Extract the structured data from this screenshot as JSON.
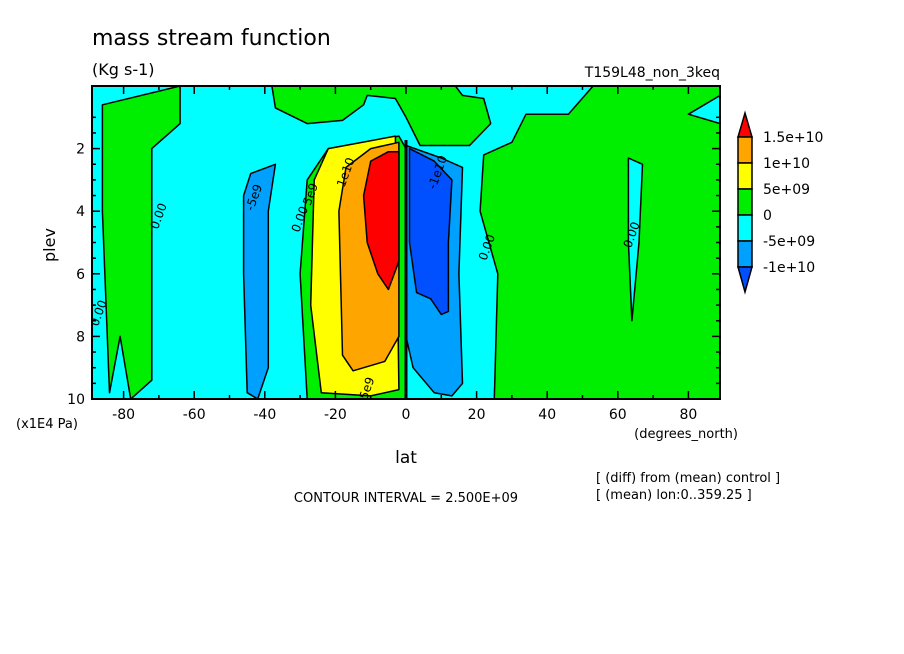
{
  "chart_data": {
    "type": "heatmap",
    "title": "mass stream function",
    "units": "(Kg s-1)",
    "experiment": "T159L48_non_3keq",
    "xlabel": "lat",
    "xunits": "(degrees_north)",
    "ylabel": "plev",
    "yunits": "(x1E4 Pa)",
    "xlim": [
      -89,
      89
    ],
    "ylim": [
      10,
      0
    ],
    "xticks": [
      -80,
      -60,
      -40,
      -20,
      0,
      20,
      40,
      60,
      80
    ],
    "xtick_labels": [
      "-80",
      "-60",
      "-40",
      "-20",
      "0",
      "20",
      "40",
      "60",
      "80"
    ],
    "yticks": [
      2,
      4,
      6,
      8,
      10
    ],
    "ytick_labels": [
      "2",
      "4",
      "6",
      "8",
      "10"
    ],
    "contour_interval_text": "CONTOUR INTERVAL = 2.500E+09",
    "notes": [
      "[ (diff) from (mean) control ]",
      "[ (mean) lon:0..359.25 ]"
    ],
    "legend": {
      "levels": [
        "1.5e+10",
        "1e+10",
        "5e+09",
        "0",
        "-5e+09",
        "-1e+10"
      ],
      "colors": [
        "#ff0000",
        "#ffa500",
        "#ffff00",
        "#00ee00",
        "#00ffff",
        "#00a0ff",
        "#0050ff"
      ],
      "placement": "right"
    },
    "regions": [
      {
        "level": "0..5e9",
        "color": "#00ee00",
        "points": [
          [
            -86,
            0.6
          ],
          [
            -64,
            0
          ],
          [
            -64,
            1.2
          ],
          [
            -72,
            2
          ],
          [
            -72,
            9.4
          ],
          [
            -78,
            10
          ],
          [
            -81,
            8
          ],
          [
            -84,
            9.8
          ],
          [
            -86,
            4
          ]
        ]
      },
      {
        "level": "0..5e9",
        "color": "#00ee00",
        "points": [
          [
            -38,
            0
          ],
          [
            -37,
            0.7
          ],
          [
            -28,
            1.2
          ],
          [
            -18,
            1.1
          ],
          [
            -12,
            0.6
          ],
          [
            -11,
            0.3
          ],
          [
            -3,
            0.4
          ],
          [
            0,
            1.0
          ],
          [
            4,
            1.9
          ],
          [
            18,
            1.9
          ],
          [
            24,
            1.2
          ],
          [
            22,
            0.4
          ],
          [
            16,
            0.3
          ],
          [
            14,
            0
          ]
        ]
      },
      {
        "level": "0..5e9",
        "color": "#00ee00",
        "points": [
          [
            -28,
            10
          ],
          [
            -30,
            6
          ],
          [
            -28,
            3
          ],
          [
            -22,
            2
          ],
          [
            -2,
            1.6
          ],
          [
            0,
            2
          ],
          [
            0,
            10
          ]
        ]
      },
      {
        "level": "0..5e9",
        "color": "#00ee00",
        "points": [
          [
            25,
            10
          ],
          [
            26,
            6
          ],
          [
            21,
            4
          ],
          [
            22,
            2.2
          ],
          [
            30,
            1.8
          ],
          [
            34,
            0.9
          ],
          [
            46,
            0.9
          ],
          [
            53,
            0
          ],
          [
            89,
            0
          ],
          [
            89,
            0.3
          ],
          [
            80,
            0.9
          ],
          [
            89,
            1.2
          ],
          [
            89,
            10
          ]
        ]
      },
      {
        "level": "-5e9..0",
        "color": "#00ffff",
        "points": [
          [
            63,
            2.3
          ],
          [
            67,
            2.5
          ],
          [
            66,
            5
          ],
          [
            64,
            7.5
          ],
          [
            63,
            5
          ]
        ]
      },
      {
        "level": "5e9..1e10",
        "color": "#ffff00",
        "points": [
          [
            -24,
            9.8
          ],
          [
            -27,
            7
          ],
          [
            -26,
            3
          ],
          [
            -22,
            2
          ],
          [
            -3,
            1.6
          ],
          [
            -2,
            9.7
          ],
          [
            -10,
            9.9
          ]
        ]
      },
      {
        "level": "1e10..1.5e10",
        "color": "#ffa500",
        "points": [
          [
            -18,
            8.6
          ],
          [
            -19,
            4
          ],
          [
            -17,
            2.6
          ],
          [
            -10,
            2.0
          ],
          [
            -2,
            1.8
          ],
          [
            -2,
            8.0
          ],
          [
            -6,
            8.8
          ],
          [
            -15,
            9.1
          ]
        ]
      },
      {
        "level": ">1.5e10",
        "color": "#ff0000",
        "points": [
          [
            -12,
            3.5
          ],
          [
            -10,
            2.4
          ],
          [
            -5,
            2.1
          ],
          [
            -2,
            2.1
          ],
          [
            -2,
            5.6
          ],
          [
            -5,
            6.5
          ],
          [
            -8,
            6.0
          ],
          [
            -11,
            5
          ]
        ]
      },
      {
        "level": "-1e10..-5e9",
        "color": "#00a0ff",
        "points": [
          [
            0,
            1.9
          ],
          [
            10,
            2.3
          ],
          [
            16,
            2.6
          ],
          [
            15,
            6
          ],
          [
            16,
            9.5
          ],
          [
            13,
            9.9
          ],
          [
            8,
            9.8
          ],
          [
            2,
            9.0
          ],
          [
            0,
            8
          ]
        ]
      },
      {
        "level": "<-1e10",
        "color": "#0050ff",
        "points": [
          [
            1,
            2.0
          ],
          [
            8,
            2.4
          ],
          [
            13,
            3
          ],
          [
            12,
            5
          ],
          [
            12,
            7.2
          ],
          [
            10,
            7.3
          ],
          [
            7,
            6.8
          ],
          [
            3,
            6.6
          ],
          [
            1,
            5
          ]
        ]
      },
      {
        "level": "-1e10..-5e9",
        "color": "#00a0ff",
        "points": [
          [
            -46,
            3.5
          ],
          [
            -44,
            2.8
          ],
          [
            -37,
            2.5
          ],
          [
            -39,
            4
          ],
          [
            -39,
            9
          ],
          [
            -42,
            10
          ],
          [
            -45,
            9.8
          ],
          [
            -46,
            6
          ]
        ]
      }
    ],
    "contour_labels": [
      {
        "text": "0.00",
        "lat": -69,
        "plev": 4.2
      },
      {
        "text": "0.00",
        "lat": -86,
        "plev": 7.3
      },
      {
        "text": "-5e9",
        "lat": -42,
        "plev": 3.6
      },
      {
        "text": "0.00",
        "lat": -29,
        "plev": 4.3
      },
      {
        "text": "5e9",
        "lat": -26,
        "plev": 3.5
      },
      {
        "text": "1e10",
        "lat": -16,
        "plev": 2.8
      },
      {
        "text": "5e9",
        "lat": -10,
        "plev": 9.7
      },
      {
        "text": "-1e10",
        "lat": 10,
        "plev": 2.8
      },
      {
        "text": "0.00",
        "lat": 24,
        "plev": 5.2
      },
      {
        "text": "0.00",
        "lat": 65,
        "plev": 4.8
      }
    ]
  }
}
